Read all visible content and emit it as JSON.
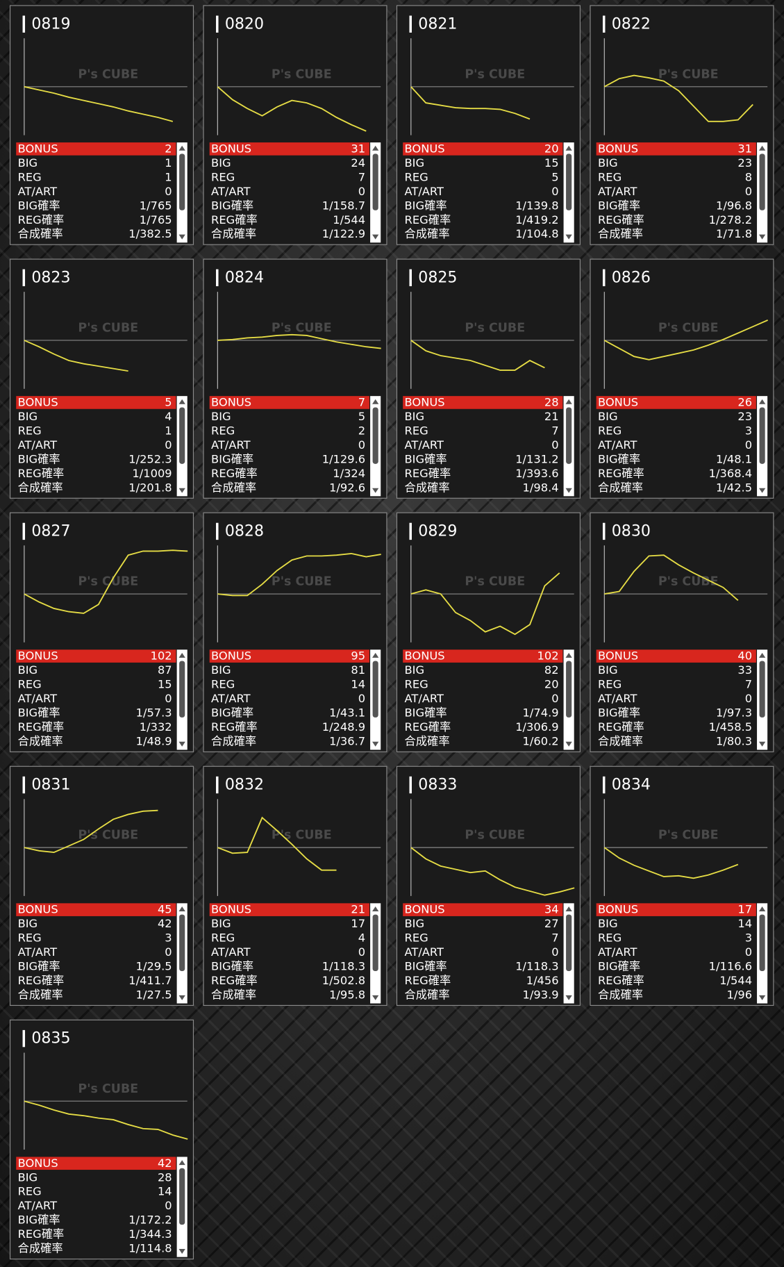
{
  "watermark": "P's CUBE",
  "stat_labels": [
    "BONUS",
    "BIG",
    "REG",
    "AT/ART",
    "BIG確率",
    "REG確率",
    "合成確率"
  ],
  "cards": [
    {
      "id": "0819",
      "graph": [
        0,
        -4,
        -8,
        -13,
        -17,
        -21,
        -25,
        -30,
        -34,
        -38,
        -43
      ],
      "stats": [
        "2",
        "1",
        "1",
        "0",
        "1/765",
        "1/765",
        "1/382.5"
      ]
    },
    {
      "id": "0820",
      "graph": [
        0,
        -16,
        -27,
        -36,
        -25,
        -17,
        -20,
        -27,
        -38,
        -47,
        -55
      ],
      "stats": [
        "31",
        "24",
        "7",
        "0",
        "1/158.7",
        "1/544",
        "1/122.9"
      ]
    },
    {
      "id": "0821",
      "graph": [
        0,
        -20,
        -23,
        -26,
        -27,
        -27,
        -28,
        -33,
        -40
      ],
      "stats": [
        "20",
        "15",
        "5",
        "0",
        "1/139.8",
        "1/419.2",
        "1/104.8"
      ]
    },
    {
      "id": "0822",
      "graph": [
        0,
        10,
        14,
        11,
        7,
        -5,
        -24,
        -43,
        -43,
        -41,
        -22
      ],
      "stats": [
        "31",
        "23",
        "8",
        "0",
        "1/96.8",
        "1/278.2",
        "1/71.8"
      ]
    },
    {
      "id": "0823",
      "graph": [
        0,
        -8,
        -17,
        -25,
        -29,
        -32,
        -35,
        -38
      ],
      "stats": [
        "5",
        "4",
        "1",
        "0",
        "1/252.3",
        "1/1009",
        "1/201.8"
      ]
    },
    {
      "id": "0824",
      "graph": [
        0,
        1,
        3,
        4,
        6,
        7,
        6,
        2,
        -2,
        -5,
        -8,
        -10
      ],
      "stats": [
        "7",
        "5",
        "2",
        "0",
        "1/129.6",
        "1/324",
        "1/92.6"
      ]
    },
    {
      "id": "0825",
      "graph": [
        0,
        -13,
        -19,
        -22,
        -25,
        -31,
        -37,
        -37,
        -25,
        -34
      ],
      "stats": [
        "28",
        "21",
        "7",
        "0",
        "1/131.2",
        "1/393.6",
        "1/98.4"
      ]
    },
    {
      "id": "0826",
      "graph": [
        0,
        -10,
        -20,
        -24,
        -20,
        -16,
        -12,
        -6,
        1,
        9,
        17,
        25
      ],
      "stats": [
        "26",
        "23",
        "3",
        "0",
        "1/48.1",
        "1/368.4",
        "1/42.5"
      ]
    },
    {
      "id": "0827",
      "graph": [
        0,
        -10,
        -18,
        -22,
        -24,
        -13,
        20,
        48,
        53,
        53,
        54,
        53
      ],
      "stats": [
        "102",
        "87",
        "15",
        "0",
        "1/57.3",
        "1/332",
        "1/48.9"
      ]
    },
    {
      "id": "0828",
      "graph": [
        0,
        -2,
        -2,
        12,
        29,
        42,
        47,
        47,
        48,
        50,
        46,
        49
      ],
      "stats": [
        "95",
        "81",
        "14",
        "0",
        "1/43.1",
        "1/248.9",
        "1/36.7"
      ]
    },
    {
      "id": "0829",
      "graph": [
        0,
        5,
        0,
        -23,
        -33,
        -47,
        -40,
        -50,
        -38,
        10,
        26
      ],
      "stats": [
        "102",
        "82",
        "20",
        "0",
        "1/74.9",
        "1/306.9",
        "1/60.2"
      ]
    },
    {
      "id": "0830",
      "graph": [
        0,
        3,
        28,
        47,
        48,
        36,
        26,
        17,
        8,
        -8
      ],
      "stats": [
        "40",
        "33",
        "7",
        "0",
        "1/97.3",
        "1/458.5",
        "1/80.3"
      ]
    },
    {
      "id": "0831",
      "graph": [
        0,
        -4,
        -6,
        2,
        10,
        23,
        35,
        41,
        45,
        46
      ],
      "stats": [
        "45",
        "42",
        "3",
        "0",
        "1/29.5",
        "1/411.7",
        "1/27.5"
      ]
    },
    {
      "id": "0832",
      "graph": [
        0,
        -7,
        -6,
        37,
        21,
        4,
        -14,
        -28,
        -28
      ],
      "stats": [
        "21",
        "17",
        "4",
        "0",
        "1/118.3",
        "1/502.8",
        "1/95.8"
      ]
    },
    {
      "id": "0833",
      "graph": [
        0,
        -14,
        -23,
        -27,
        -31,
        -29,
        -40,
        -49,
        -54,
        -59,
        -55,
        -50
      ],
      "stats": [
        "34",
        "27",
        "7",
        "0",
        "1/118.3",
        "1/456",
        "1/93.9"
      ]
    },
    {
      "id": "0834",
      "graph": [
        0,
        -13,
        -22,
        -29,
        -36,
        -35,
        -38,
        -34,
        -28,
        -21
      ],
      "stats": [
        "17",
        "14",
        "3",
        "0",
        "1/116.6",
        "1/544",
        "1/96"
      ]
    },
    {
      "id": "0835",
      "graph": [
        0,
        -5,
        -11,
        -16,
        -18,
        -21,
        -23,
        -29,
        -34,
        -35,
        -42,
        -47
      ],
      "stats": [
        "42",
        "28",
        "14",
        "0",
        "1/172.2",
        "1/344.3",
        "1/114.8"
      ]
    }
  ]
}
